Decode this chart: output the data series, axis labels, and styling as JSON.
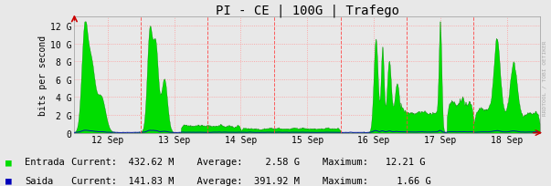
{
  "title": "PI - CE | 100G | Trafego",
  "ylabel": "bits per second",
  "ytick_labels": [
    "0",
    "2 G",
    "4 G",
    "6 G",
    "8 G",
    "10 G",
    "12 G"
  ],
  "ytick_values": [
    0,
    2000000000,
    4000000000,
    6000000000,
    8000000000,
    10000000000,
    12000000000
  ],
  "ymax": 13000000000,
  "bg_color": "#e8e8e8",
  "plot_bg_color": "#e8e8e8",
  "grid_color": "#ff9999",
  "grid_style": ":",
  "entrada_color": "#00dd00",
  "entrada_edge_color": "#006600",
  "saida_color": "#0000bb",
  "vline_color": "#ff4444",
  "xtick_labels": [
    "12 Sep",
    "13 Sep",
    "14 Sep",
    "15 Sep",
    "16 Sep",
    "17 Sep",
    "18 Sep"
  ],
  "title_fontsize": 10,
  "axis_fontsize": 7,
  "tick_fontsize": 7,
  "legend_fontsize": 7.5,
  "legend_entrada": "Entrada",
  "legend_saida": "Saida",
  "legend_text": "Current:  432.62 M    Average:    2.58 G    Maximum:   12.21 G",
  "legend_text2": "Current:  141.83 M    Average:  391.92 M    Maximum:     1.66 G",
  "watermark": "RRDTOOL / TOBI OETIKER",
  "num_points": 2016,
  "arrow_color": "#cc0000"
}
